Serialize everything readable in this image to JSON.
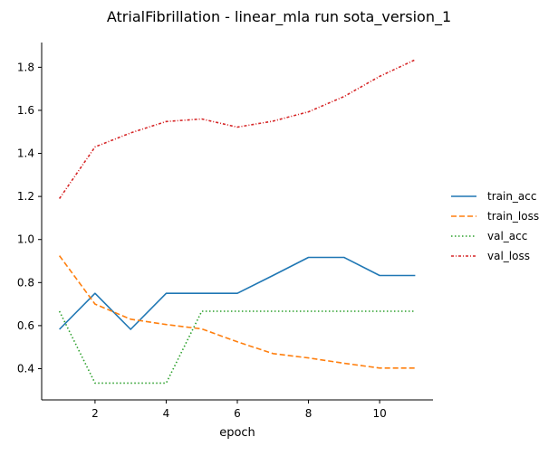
{
  "chart_data": {
    "type": "line",
    "title": "AtrialFibrillation - linear_mla run sota_version_1",
    "xlabel": "epoch",
    "ylabel": "",
    "xlim": [
      0.5,
      11.5
    ],
    "ylim": [
      0.255,
      1.915
    ],
    "xticks": [
      2,
      4,
      6,
      8,
      10
    ],
    "yticks": [
      0.4,
      0.6,
      0.8,
      1.0,
      1.2,
      1.4,
      1.6,
      1.8
    ],
    "grid": false,
    "legend_position": "right",
    "x": [
      1,
      2,
      3,
      4,
      5,
      6,
      7,
      8,
      9,
      10,
      11
    ],
    "series": [
      {
        "name": "train_acc",
        "color": "#1f77b4",
        "style": "solid",
        "values": [
          0.583,
          0.75,
          0.583,
          0.75,
          0.75,
          0.75,
          0.833,
          0.917,
          0.917,
          0.833,
          0.833
        ]
      },
      {
        "name": "train_loss",
        "color": "#ff7f0e",
        "style": "dashed",
        "values": [
          0.925,
          0.7,
          0.63,
          0.605,
          0.585,
          0.525,
          0.47,
          0.45,
          0.425,
          0.403,
          0.403
        ]
      },
      {
        "name": "val_acc",
        "color": "#2ca02c",
        "style": "dotted",
        "values": [
          0.667,
          0.333,
          0.333,
          0.333,
          0.667,
          0.667,
          0.667,
          0.667,
          0.667,
          0.667,
          0.667
        ]
      },
      {
        "name": "val_loss",
        "color": "#d62728",
        "style": "dashdot",
        "values": [
          1.19,
          1.43,
          1.495,
          1.548,
          1.56,
          1.522,
          1.55,
          1.593,
          1.664,
          1.758,
          1.835
        ]
      }
    ]
  }
}
